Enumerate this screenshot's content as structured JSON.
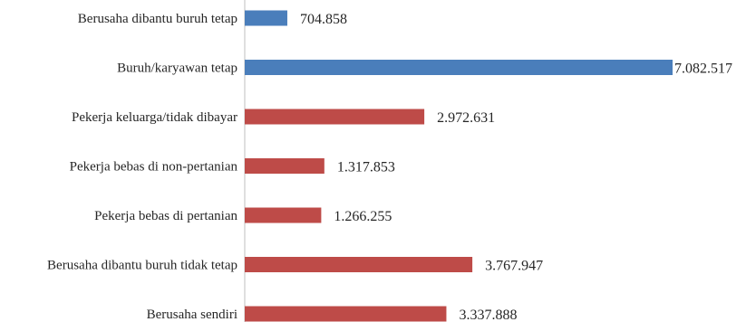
{
  "chart_data": {
    "type": "bar",
    "orientation": "horizontal",
    "categories": [
      "Berusaha dibantu buruh tetap",
      "Buruh/karyawan tetap",
      "Pekerja keluarga/tidak dibayar",
      "Pekerja bebas di non-pertanian",
      "Pekerja bebas di pertanian",
      "Berusaha dibantu buruh tidak tetap",
      "Berusaha sendiri"
    ],
    "values": [
      704858,
      7082517,
      2972631,
      1317853,
      1266255,
      3767947,
      3337888
    ],
    "value_labels": [
      "704.858",
      "7.082.517",
      "2.972.631",
      "1.317.853",
      "1.266.255",
      "3.767.947",
      "3.337.888"
    ],
    "bar_colors": [
      "#4a7ebb",
      "#4a7ebb",
      "#be4b48",
      "#be4b48",
      "#be4b48",
      "#be4b48",
      "#be4b48"
    ],
    "title": "",
    "xlabel": "",
    "ylabel": "",
    "xlim": [
      0,
      7082517
    ],
    "grid": false,
    "legend": "none"
  }
}
